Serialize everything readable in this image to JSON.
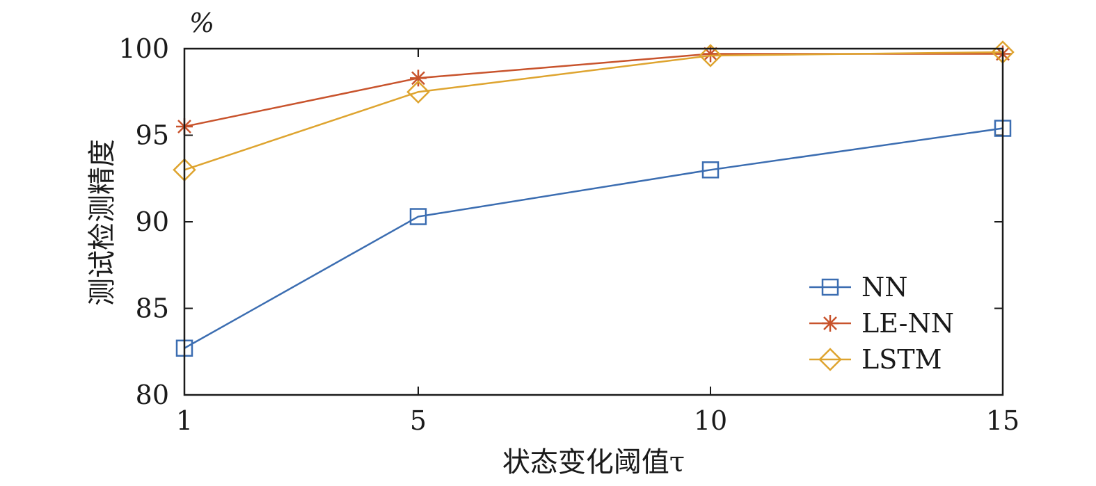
{
  "chart_data": {
    "type": "line",
    "title": "",
    "xlabel": "状态变化阈值τ",
    "ylabel": "测试检测精度",
    "y_unit": "%",
    "x": [
      1,
      5,
      10,
      15
    ],
    "xticks": [
      "1",
      "5",
      "10",
      "15"
    ],
    "xlim": [
      1,
      15
    ],
    "yticks": [
      "80",
      "85",
      "90",
      "95",
      "100"
    ],
    "ylim": [
      80,
      100
    ],
    "grid": false,
    "legend_position": "bottom-right",
    "series": [
      {
        "name": "NN",
        "color": "#3b6db1",
        "marker": "square",
        "values": [
          82.7,
          90.3,
          93.0,
          95.4
        ]
      },
      {
        "name": "LE-NN",
        "color": "#c8532c",
        "marker": "asterisk",
        "values": [
          95.5,
          98.3,
          99.7,
          99.7
        ]
      },
      {
        "name": "LSTM",
        "color": "#dea42f",
        "marker": "diamond",
        "values": [
          93.0,
          97.5,
          99.6,
          99.8
        ]
      }
    ]
  }
}
